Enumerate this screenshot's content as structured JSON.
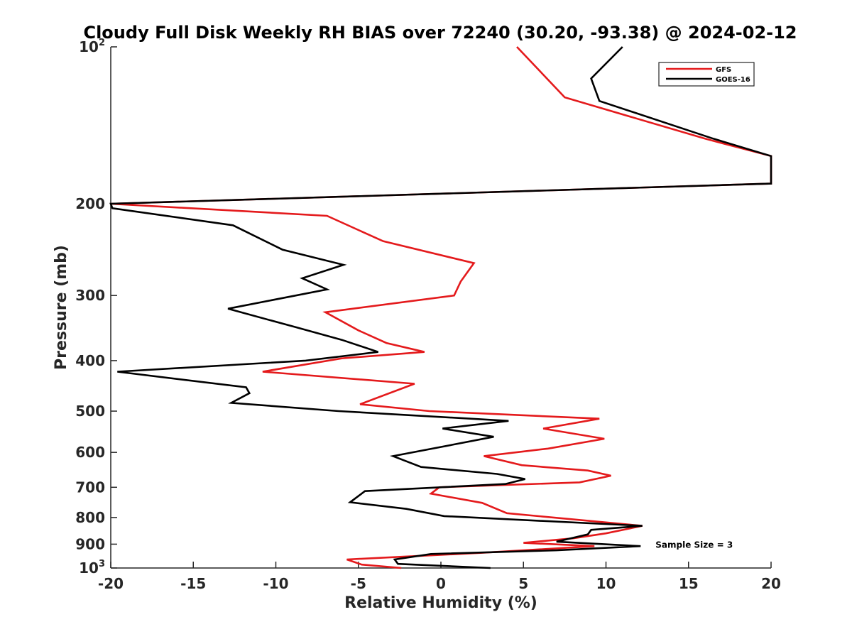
{
  "chart_data": {
    "type": "line",
    "title": "Cloudy Full Disk Weekly RH BIAS over 72240 (30.20, -93.38) @ 2024-02-12",
    "xlabel": "Relative Humidity (%)",
    "ylabel": "Pressure (mb)",
    "xlim": [
      -20,
      20
    ],
    "ylim": [
      100,
      1000
    ],
    "yscale": "log",
    "yreversed": true,
    "x_ticks": [
      -20,
      -15,
      -10,
      -5,
      0,
      5,
      10,
      15,
      20
    ],
    "y_ticks": [
      {
        "value": 100,
        "label": "10",
        "sup": "2"
      },
      {
        "value": 200,
        "label": "200",
        "sup": ""
      },
      {
        "value": 300,
        "label": "300",
        "sup": ""
      },
      {
        "value": 400,
        "label": "400",
        "sup": ""
      },
      {
        "value": 500,
        "label": "500",
        "sup": ""
      },
      {
        "value": 600,
        "label": "600",
        "sup": ""
      },
      {
        "value": 700,
        "label": "700",
        "sup": ""
      },
      {
        "value": 800,
        "label": "800",
        "sup": ""
      },
      {
        "value": 900,
        "label": "900",
        "sup": ""
      },
      {
        "value": 1000,
        "label": "10",
        "sup": "3"
      }
    ],
    "legend": {
      "position": "top-right"
    },
    "series": [
      {
        "name": "GFS",
        "color": "#e41a1c",
        "points": [
          [
            4.6,
            100
          ],
          [
            7.5,
            125
          ],
          [
            16.0,
            150
          ],
          [
            20.0,
            162
          ],
          [
            20.0,
            183
          ],
          [
            -20.0,
            200
          ],
          [
            -6.9,
            211
          ],
          [
            -3.5,
            236
          ],
          [
            2.0,
            260
          ],
          [
            1.2,
            282
          ],
          [
            0.8,
            300
          ],
          [
            -7.0,
            323
          ],
          [
            -5.0,
            350
          ],
          [
            -3.3,
            370
          ],
          [
            -1.0,
            385
          ],
          [
            -6.0,
            396
          ],
          [
            -10.8,
            420
          ],
          [
            -1.6,
            443
          ],
          [
            -4.9,
            485
          ],
          [
            -0.7,
            500
          ],
          [
            9.6,
            517
          ],
          [
            6.2,
            540
          ],
          [
            9.9,
            565
          ],
          [
            6.5,
            590
          ],
          [
            2.6,
            610
          ],
          [
            4.9,
            635
          ],
          [
            8.9,
            650
          ],
          [
            10.3,
            665
          ],
          [
            8.4,
            685
          ],
          [
            -0.1,
            700
          ],
          [
            -0.6,
            720
          ],
          [
            2.5,
            750
          ],
          [
            4.0,
            785
          ],
          [
            12.2,
            830
          ],
          [
            10.0,
            858
          ],
          [
            8.0,
            877
          ],
          [
            5.0,
            895
          ],
          [
            9.3,
            908
          ],
          [
            2.5,
            935
          ],
          [
            -5.7,
            963
          ],
          [
            -4.8,
            985
          ],
          [
            -2.4,
            1000
          ]
        ]
      },
      {
        "name": "GOES-16",
        "color": "#000000",
        "points": [
          [
            11.0,
            100
          ],
          [
            9.1,
            115
          ],
          [
            9.6,
            127
          ],
          [
            16.5,
            150
          ],
          [
            20.0,
            162
          ],
          [
            20.0,
            183
          ],
          [
            -20.0,
            200
          ],
          [
            -19.9,
            204
          ],
          [
            -12.6,
            220
          ],
          [
            -9.6,
            245
          ],
          [
            -5.9,
            262
          ],
          [
            -8.4,
            278
          ],
          [
            -6.9,
            292
          ],
          [
            -12.9,
            318
          ],
          [
            -8.8,
            345
          ],
          [
            -6.0,
            365
          ],
          [
            -3.8,
            385
          ],
          [
            -8.2,
            400
          ],
          [
            -19.6,
            420
          ],
          [
            -11.8,
            450
          ],
          [
            -11.6,
            462
          ],
          [
            -12.7,
            482
          ],
          [
            -6.2,
            500
          ],
          [
            4.1,
            522
          ],
          [
            0.1,
            540
          ],
          [
            3.2,
            560
          ],
          [
            0.7,
            580
          ],
          [
            -2.9,
            610
          ],
          [
            -1.2,
            640
          ],
          [
            3.4,
            660
          ],
          [
            5.1,
            675
          ],
          [
            3.9,
            690
          ],
          [
            -4.6,
            712
          ],
          [
            -5.5,
            748
          ],
          [
            -2.1,
            770
          ],
          [
            0.2,
            795
          ],
          [
            12.2,
            830
          ],
          [
            9.1,
            845
          ],
          [
            8.9,
            862
          ],
          [
            7.0,
            890
          ],
          [
            12.1,
            908
          ],
          [
            7.0,
            925
          ],
          [
            -0.6,
            940
          ],
          [
            -2.8,
            963
          ],
          [
            -2.6,
            982
          ],
          [
            3.0,
            1000
          ]
        ]
      }
    ],
    "annotations": [
      {
        "text": "Sample Size = 3",
        "x": 12.7,
        "y": 900
      }
    ]
  }
}
